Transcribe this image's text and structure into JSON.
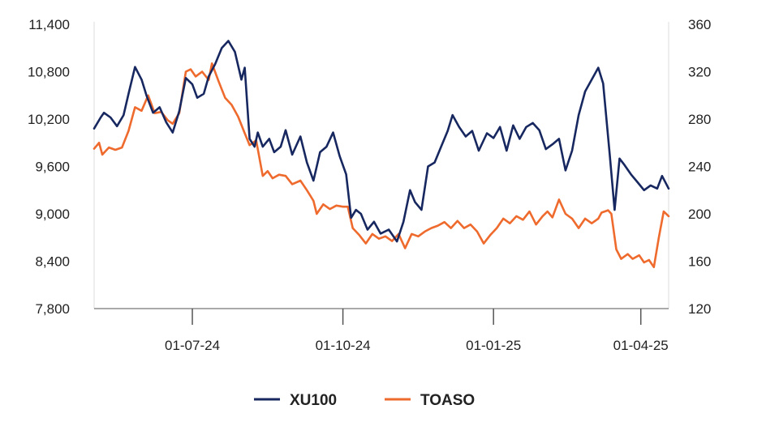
{
  "chart_data": {
    "type": "line",
    "x_ticks": [
      "01-07-24",
      "01-10-24",
      "01-01-25",
      "01-04-25"
    ],
    "x_range": [
      "2024-05-02",
      "2025-04-18"
    ],
    "y_left": {
      "ticks": [
        "11,400",
        "10,800",
        "10,200",
        "9,600",
        "9,000",
        "8,400",
        "7,800"
      ],
      "min": 7800,
      "max": 11400
    },
    "y_right": {
      "ticks": [
        "360",
        "320",
        "280",
        "240",
        "200",
        "160",
        "120"
      ],
      "min": 120,
      "max": 360
    },
    "grid": "left axis line and right boundary only",
    "legend_position": "bottom-center",
    "series": [
      {
        "name": "XU100",
        "axis": "left",
        "color": "#17275f",
        "points": [
          [
            "2024-05-02",
            10080
          ],
          [
            "2024-05-06",
            10220
          ],
          [
            "2024-05-08",
            10280
          ],
          [
            "2024-05-12",
            10220
          ],
          [
            "2024-05-16",
            10110
          ],
          [
            "2024-05-20",
            10250
          ],
          [
            "2024-05-23",
            10520
          ],
          [
            "2024-05-27",
            10860
          ],
          [
            "2024-05-31",
            10700
          ],
          [
            "2024-06-03",
            10500
          ],
          [
            "2024-06-07",
            10280
          ],
          [
            "2024-06-11",
            10350
          ],
          [
            "2024-06-15",
            10160
          ],
          [
            "2024-06-19",
            10030
          ],
          [
            "2024-06-23",
            10300
          ],
          [
            "2024-06-27",
            10720
          ],
          [
            "2024-07-01",
            10640
          ],
          [
            "2024-07-04",
            10470
          ],
          [
            "2024-07-08",
            10520
          ],
          [
            "2024-07-11",
            10740
          ],
          [
            "2024-07-15",
            10900
          ],
          [
            "2024-07-19",
            11100
          ],
          [
            "2024-07-23",
            11190
          ],
          [
            "2024-07-27",
            11050
          ],
          [
            "2024-07-31",
            10700
          ],
          [
            "2024-08-02",
            10850
          ],
          [
            "2024-08-05",
            9950
          ],
          [
            "2024-08-08",
            9850
          ],
          [
            "2024-08-10",
            10030
          ],
          [
            "2024-08-13",
            9850
          ],
          [
            "2024-08-17",
            9950
          ],
          [
            "2024-08-20",
            9780
          ],
          [
            "2024-08-24",
            9850
          ],
          [
            "2024-08-27",
            10060
          ],
          [
            "2024-08-31",
            9750
          ],
          [
            "2024-09-05",
            9980
          ],
          [
            "2024-09-09",
            9650
          ],
          [
            "2024-09-13",
            9420
          ],
          [
            "2024-09-17",
            9780
          ],
          [
            "2024-09-21",
            9850
          ],
          [
            "2024-09-25",
            10030
          ],
          [
            "2024-09-29",
            9730
          ],
          [
            "2024-10-03",
            9500
          ],
          [
            "2024-10-06",
            8950
          ],
          [
            "2024-10-09",
            9050
          ],
          [
            "2024-10-12",
            9000
          ],
          [
            "2024-10-16",
            8800
          ],
          [
            "2024-10-20",
            8900
          ],
          [
            "2024-10-24",
            8750
          ],
          [
            "2024-10-29",
            8800
          ],
          [
            "2024-11-03",
            8650
          ],
          [
            "2024-11-07",
            8900
          ],
          [
            "2024-11-11",
            9300
          ],
          [
            "2024-11-14",
            9150
          ],
          [
            "2024-11-18",
            9050
          ],
          [
            "2024-11-22",
            9600
          ],
          [
            "2024-11-26",
            9650
          ],
          [
            "2024-11-30",
            9850
          ],
          [
            "2024-12-04",
            10050
          ],
          [
            "2024-12-07",
            10250
          ],
          [
            "2024-12-11",
            10100
          ],
          [
            "2024-12-15",
            9980
          ],
          [
            "2024-12-19",
            10050
          ],
          [
            "2024-12-23",
            9800
          ],
          [
            "2024-12-28",
            10020
          ],
          [
            "2025-01-01",
            9960
          ],
          [
            "2025-01-05",
            10100
          ],
          [
            "2025-01-09",
            9800
          ],
          [
            "2025-01-13",
            10120
          ],
          [
            "2025-01-17",
            9950
          ],
          [
            "2025-01-21",
            10100
          ],
          [
            "2025-01-25",
            10150
          ],
          [
            "2025-01-29",
            10060
          ],
          [
            "2025-02-02",
            9820
          ],
          [
            "2025-02-06",
            9880
          ],
          [
            "2025-02-10",
            9950
          ],
          [
            "2025-02-14",
            9550
          ],
          [
            "2025-02-18",
            9800
          ],
          [
            "2025-02-22",
            10250
          ],
          [
            "2025-02-26",
            10550
          ],
          [
            "2025-03-02",
            10700
          ],
          [
            "2025-03-06",
            10850
          ],
          [
            "2025-03-09",
            10650
          ],
          [
            "2025-03-13",
            9750
          ],
          [
            "2025-03-16",
            9050
          ],
          [
            "2025-03-19",
            9700
          ],
          [
            "2025-03-22",
            9620
          ],
          [
            "2025-03-26",
            9500
          ],
          [
            "2025-03-30",
            9400
          ],
          [
            "2025-04-03",
            9300
          ],
          [
            "2025-04-07",
            9360
          ],
          [
            "2025-04-11",
            9320
          ],
          [
            "2025-04-14",
            9480
          ],
          [
            "2025-04-18",
            9320
          ]
        ]
      },
      {
        "name": "TOASO",
        "axis": "right",
        "color": "#ee6a2d",
        "points": [
          [
            "2024-05-02",
            255
          ],
          [
            "2024-05-05",
            260
          ],
          [
            "2024-05-07",
            250
          ],
          [
            "2024-05-11",
            256
          ],
          [
            "2024-05-15",
            254
          ],
          [
            "2024-05-19",
            256
          ],
          [
            "2024-05-23",
            270
          ],
          [
            "2024-05-27",
            290
          ],
          [
            "2024-05-31",
            287
          ],
          [
            "2024-06-04",
            300
          ],
          [
            "2024-06-08",
            285
          ],
          [
            "2024-06-12",
            286
          ],
          [
            "2024-06-16",
            279
          ],
          [
            "2024-06-19",
            276
          ],
          [
            "2024-06-23",
            285
          ],
          [
            "2024-06-27",
            320
          ],
          [
            "2024-06-30",
            322
          ],
          [
            "2024-07-03",
            316
          ],
          [
            "2024-07-07",
            320
          ],
          [
            "2024-07-11",
            313
          ],
          [
            "2024-07-13",
            327
          ],
          [
            "2024-07-17",
            312
          ],
          [
            "2024-07-21",
            298
          ],
          [
            "2024-07-25",
            292
          ],
          [
            "2024-07-29",
            282
          ],
          [
            "2024-08-02",
            268
          ],
          [
            "2024-08-05",
            258
          ],
          [
            "2024-08-09",
            262
          ],
          [
            "2024-08-13",
            232
          ],
          [
            "2024-08-16",
            236
          ],
          [
            "2024-08-19",
            230
          ],
          [
            "2024-08-23",
            233
          ],
          [
            "2024-08-27",
            232
          ],
          [
            "2024-08-31",
            225
          ],
          [
            "2024-09-05",
            228
          ],
          [
            "2024-09-09",
            220
          ],
          [
            "2024-09-13",
            211
          ],
          [
            "2024-09-15",
            200
          ],
          [
            "2024-09-19",
            208
          ],
          [
            "2024-09-23",
            204
          ],
          [
            "2024-09-27",
            207
          ],
          [
            "2024-10-01",
            206
          ],
          [
            "2024-10-04",
            206
          ],
          [
            "2024-10-07",
            188
          ],
          [
            "2024-10-11",
            182
          ],
          [
            "2024-10-15",
            175
          ],
          [
            "2024-10-19",
            183
          ],
          [
            "2024-10-23",
            179
          ],
          [
            "2024-10-27",
            181
          ],
          [
            "2024-10-31",
            177
          ],
          [
            "2024-11-04",
            183
          ],
          [
            "2024-11-08",
            171
          ],
          [
            "2024-11-12",
            183
          ],
          [
            "2024-11-16",
            181
          ],
          [
            "2024-11-20",
            185
          ],
          [
            "2024-11-24",
            188
          ],
          [
            "2024-11-28",
            190
          ],
          [
            "2024-12-02",
            193
          ],
          [
            "2024-12-06",
            188
          ],
          [
            "2024-12-10",
            194
          ],
          [
            "2024-12-14",
            188
          ],
          [
            "2024-12-18",
            191
          ],
          [
            "2024-12-22",
            185
          ],
          [
            "2024-12-26",
            175
          ],
          [
            "2024-12-30",
            182
          ],
          [
            "2025-01-03",
            188
          ],
          [
            "2025-01-07",
            196
          ],
          [
            "2025-01-11",
            192
          ],
          [
            "2025-01-15",
            198
          ],
          [
            "2025-01-19",
            195
          ],
          [
            "2025-01-23",
            202
          ],
          [
            "2025-01-27",
            191
          ],
          [
            "2025-01-31",
            198
          ],
          [
            "2025-02-03",
            202
          ],
          [
            "2025-02-06",
            197
          ],
          [
            "2025-02-10",
            212
          ],
          [
            "2025-02-14",
            200
          ],
          [
            "2025-02-18",
            196
          ],
          [
            "2025-02-22",
            188
          ],
          [
            "2025-02-26",
            196
          ],
          [
            "2025-03-02",
            192
          ],
          [
            "2025-03-06",
            196
          ],
          [
            "2025-03-08",
            201
          ],
          [
            "2025-03-12",
            203
          ],
          [
            "2025-03-14",
            200
          ],
          [
            "2025-03-17",
            170
          ],
          [
            "2025-03-20",
            162
          ],
          [
            "2025-03-24",
            166
          ],
          [
            "2025-03-27",
            162
          ],
          [
            "2025-03-31",
            165
          ],
          [
            "2025-04-03",
            159
          ],
          [
            "2025-04-06",
            161
          ],
          [
            "2025-04-09",
            155
          ],
          [
            "2025-04-12",
            180
          ],
          [
            "2025-04-15",
            202
          ],
          [
            "2025-04-18",
            198
          ]
        ]
      }
    ]
  }
}
